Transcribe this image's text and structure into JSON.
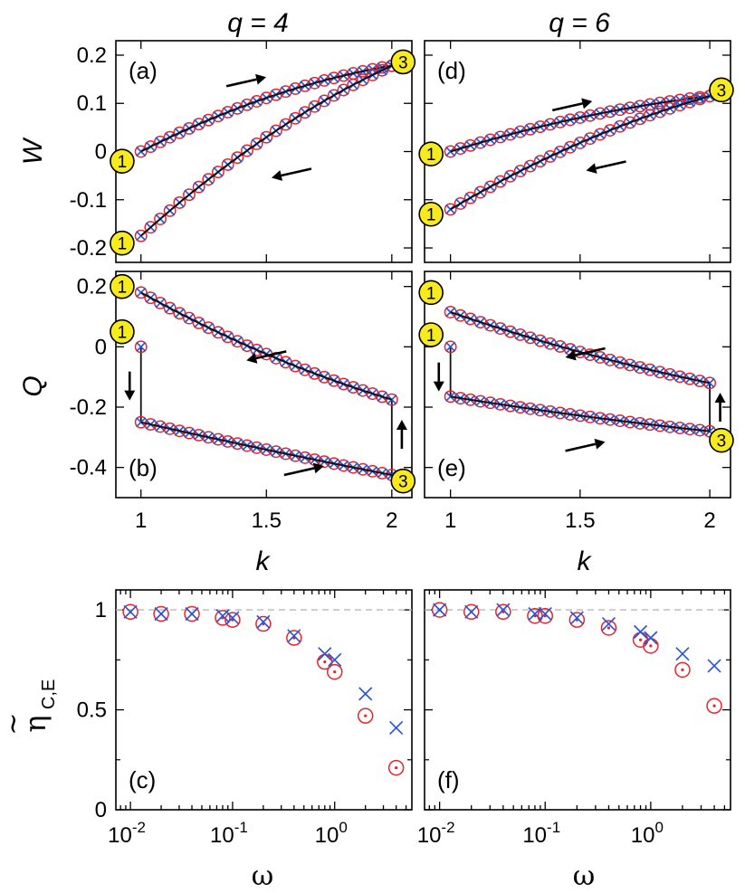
{
  "colors": {
    "circle": "#e8232a",
    "cross": "#2b56d9",
    "line": "#111111",
    "badge_fill": "#f7ea1d",
    "ref_line": "#b8b8b8"
  },
  "column_titles": {
    "left": "q = 4",
    "right": "q = 6"
  },
  "labels": {
    "W": "W",
    "Q": "Q",
    "k": "k",
    "omega": "ω",
    "eta_main": "η",
    "eta_sub": "C,E",
    "eta_tilde": "~"
  },
  "ticks": {
    "k": [
      {
        "v": 1,
        "t": "1"
      },
      {
        "v": 1.5,
        "t": "1.5"
      },
      {
        "v": 2,
        "t": "2"
      }
    ],
    "W": [
      {
        "v": 0.2,
        "t": "0.2"
      },
      {
        "v": 0.1,
        "t": "0.1"
      },
      {
        "v": 0,
        "t": "0"
      },
      {
        "v": -0.1,
        "t": "-0.1"
      },
      {
        "v": -0.2,
        "t": "-0.2"
      }
    ],
    "Q": [
      {
        "v": 0.2,
        "t": "0.2"
      },
      {
        "v": 0,
        "t": "0"
      },
      {
        "v": -0.2,
        "t": "-0.2"
      },
      {
        "v": -0.4,
        "t": "-0.4"
      }
    ],
    "eta": [
      {
        "v": 1,
        "t": "1"
      },
      {
        "v": 0.5,
        "t": "0.5"
      },
      {
        "v": 0,
        "t": "0"
      }
    ],
    "omega": [
      {
        "v": 0.01,
        "b": "10",
        "e": "-2"
      },
      {
        "v": 0.1,
        "b": "10",
        "e": "-1"
      },
      {
        "v": 1,
        "b": "10",
        "e": "0"
      }
    ]
  },
  "chart_data": [
    {
      "id": "a",
      "panel_label": "(a)",
      "type": "line",
      "ylabel": "W",
      "xlabel": "",
      "xlim": [
        0.9,
        2.08
      ],
      "ylim": [
        -0.23,
        0.23
      ],
      "series": [
        {
          "name": "upper",
          "k_from": 1,
          "k_to": 2,
          "y_from": 0.0,
          "y_to": 0.178,
          "shape": 0.5
        },
        {
          "name": "lower",
          "k_from": 1,
          "k_to": 2,
          "y_from": -0.175,
          "y_to": 0.178,
          "shape": 0.32
        }
      ],
      "badges": [
        {
          "x": 0.925,
          "y": -0.02,
          "label": "1"
        },
        {
          "x": 0.925,
          "y": -0.19,
          "label": "1"
        },
        {
          "x": 2.045,
          "y": 0.186,
          "label": "3"
        }
      ],
      "arrows": [
        {
          "x": 1.42,
          "y": 0.145,
          "dir": "right"
        },
        {
          "x": 1.6,
          "y": -0.045,
          "dir": "left"
        }
      ]
    },
    {
      "id": "b",
      "panel_label": "(b)",
      "type": "line",
      "ylabel": "Q",
      "xlabel": "k",
      "xlim": [
        0.9,
        2.08
      ],
      "ylim": [
        -0.5,
        0.25
      ],
      "series": [
        {
          "name": "upper",
          "k_from": 1,
          "k_to": 2,
          "y_from": 0.18,
          "y_to": -0.175,
          "shape": 0.3
        },
        {
          "name": "lower",
          "k_from": 1,
          "k_to": 2,
          "y_from": -0.25,
          "y_to": -0.425,
          "shape": 0.08
        }
      ],
      "extra_points": [
        {
          "x": 1,
          "y": 0.0
        }
      ],
      "jumps": [
        {
          "x": 1,
          "y1": 0.0,
          "y2": -0.25
        },
        {
          "x": 2,
          "y1": -0.175,
          "y2": -0.425
        }
      ],
      "badges": [
        {
          "x": 0.925,
          "y": 0.2,
          "label": "1"
        },
        {
          "x": 0.925,
          "y": 0.05,
          "label": "1"
        },
        {
          "x": 2.045,
          "y": -0.445,
          "label": "3"
        }
      ],
      "arrows": [
        {
          "x": 1.5,
          "y": -0.03,
          "dir": "left"
        },
        {
          "x": 1.65,
          "y": -0.41,
          "dir": "right"
        },
        {
          "x": 0.955,
          "y": -0.13,
          "dir": "down"
        },
        {
          "x": 2.04,
          "y": -0.29,
          "dir": "up"
        }
      ]
    },
    {
      "id": "c",
      "panel_label": "(c)",
      "type": "scatter",
      "ylabel": "η C,E",
      "xlabel": "ω",
      "xscale": "log",
      "xlim": [
        0.0072,
        5.7
      ],
      "ylim": [
        0,
        1.1
      ],
      "ref_y": 1,
      "x": [
        0.01,
        0.02,
        0.04,
        0.08,
        0.1,
        0.2,
        0.4,
        0.8,
        1,
        2,
        4
      ],
      "series": [
        {
          "name": "circles",
          "values": [
            0.99,
            0.98,
            0.98,
            0.96,
            0.95,
            0.93,
            0.86,
            0.74,
            0.69,
            0.47,
            0.21
          ]
        },
        {
          "name": "crosses",
          "values": [
            0.99,
            0.98,
            0.98,
            0.97,
            0.96,
            0.94,
            0.87,
            0.78,
            0.75,
            0.58,
            0.41
          ]
        }
      ]
    },
    {
      "id": "d",
      "panel_label": "(d)",
      "type": "line",
      "ylabel": "W",
      "xlabel": "",
      "xlim": [
        0.9,
        2.08
      ],
      "ylim": [
        -0.23,
        0.23
      ],
      "series": [
        {
          "name": "upper",
          "k_from": 1,
          "k_to": 2,
          "y_from": 0.0,
          "y_to": 0.115,
          "shape": 0.45
        },
        {
          "name": "lower",
          "k_from": 1,
          "k_to": 2,
          "y_from": -0.12,
          "y_to": 0.115,
          "shape": 0.35
        }
      ],
      "badges": [
        {
          "x": 0.925,
          "y": -0.005,
          "label": "1"
        },
        {
          "x": 0.925,
          "y": -0.13,
          "label": "1"
        },
        {
          "x": 2.045,
          "y": 0.128,
          "label": "3"
        }
      ],
      "arrows": [
        {
          "x": 1.47,
          "y": 0.095,
          "dir": "right"
        },
        {
          "x": 1.6,
          "y": -0.03,
          "dir": "left"
        }
      ]
    },
    {
      "id": "e",
      "panel_label": "(e)",
      "type": "line",
      "ylabel": "Q",
      "xlabel": "k",
      "xlim": [
        0.9,
        2.08
      ],
      "ylim": [
        -0.5,
        0.25
      ],
      "series": [
        {
          "name": "upper",
          "k_from": 1,
          "k_to": 2,
          "y_from": 0.115,
          "y_to": -0.12,
          "shape": 0.25
        },
        {
          "name": "lower",
          "k_from": 1,
          "k_to": 2,
          "y_from": -0.165,
          "y_to": -0.28,
          "shape": 0.2
        }
      ],
      "extra_points": [
        {
          "x": 1,
          "y": 0.0
        }
      ],
      "jumps": [
        {
          "x": 1,
          "y1": 0.0,
          "y2": -0.165
        },
        {
          "x": 2,
          "y1": -0.12,
          "y2": -0.28
        }
      ],
      "badges": [
        {
          "x": 0.925,
          "y": 0.18,
          "label": "1"
        },
        {
          "x": 0.925,
          "y": 0.04,
          "label": "1"
        },
        {
          "x": 2.045,
          "y": -0.31,
          "label": "3"
        }
      ],
      "arrows": [
        {
          "x": 1.52,
          "y": -0.02,
          "dir": "left"
        },
        {
          "x": 1.52,
          "y": -0.33,
          "dir": "right"
        },
        {
          "x": 0.955,
          "y": -0.1,
          "dir": "down"
        },
        {
          "x": 2.04,
          "y": -0.2,
          "dir": "up"
        }
      ]
    },
    {
      "id": "f",
      "panel_label": "(f)",
      "type": "scatter",
      "ylabel": "η C,E",
      "xlabel": "ω",
      "xscale": "log",
      "xlim": [
        0.0072,
        5.7
      ],
      "ylim": [
        0,
        1.1
      ],
      "ref_y": 1,
      "x": [
        0.01,
        0.02,
        0.04,
        0.08,
        0.1,
        0.2,
        0.4,
        0.8,
        1,
        2,
        4
      ],
      "series": [
        {
          "name": "circles",
          "values": [
            1.0,
            0.99,
            0.99,
            0.97,
            0.97,
            0.95,
            0.91,
            0.85,
            0.82,
            0.7,
            0.52
          ]
        },
        {
          "name": "crosses",
          "values": [
            1.0,
            0.99,
            1.0,
            0.98,
            0.98,
            0.96,
            0.93,
            0.89,
            0.86,
            0.78,
            0.72
          ]
        }
      ]
    }
  ]
}
